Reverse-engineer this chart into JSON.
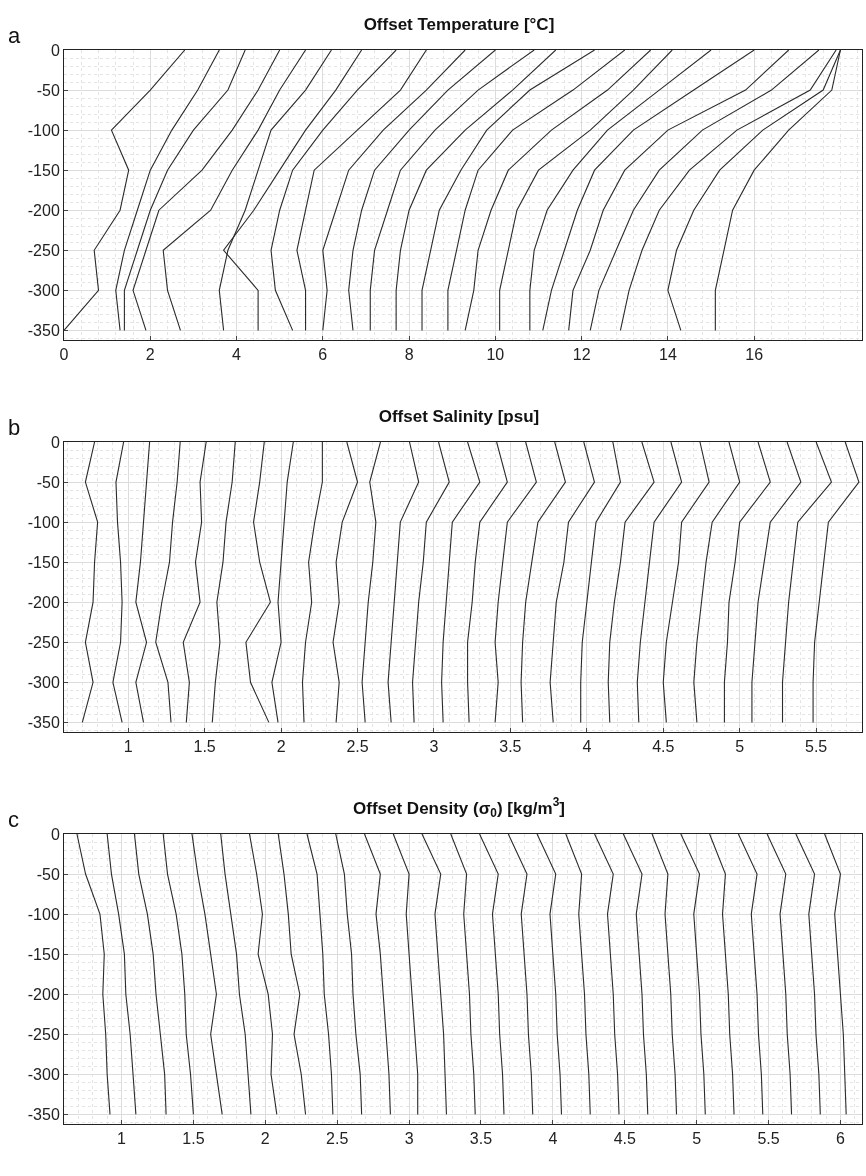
{
  "chart_data": [
    {
      "type": "line",
      "title": "Offset Temperature [°C]",
      "annotations": [
        "a"
      ],
      "xlim": [
        0,
        18.5
      ],
      "xticks": [
        0,
        2,
        4,
        6,
        8,
        10,
        12,
        14,
        16
      ],
      "ylim": [
        -362,
        0
      ],
      "yticks": [
        0,
        -50,
        -100,
        -150,
        -200,
        -250,
        -300,
        -350
      ],
      "grid": true,
      "marker": "none",
      "line_style": "solid",
      "series": [
        {
          "color": "#2b2b2b",
          "x": [
            2.8,
            2.0,
            1.1,
            1.5,
            1.3,
            0.7,
            0.8,
            0.0
          ],
          "values": [
            0,
            -50,
            -100,
            -150,
            -200,
            -250,
            -300,
            -350
          ]
        },
        {
          "color": "#2b2b2b",
          "x": [
            3.6,
            3.1,
            2.5,
            2.0,
            1.7,
            1.4,
            1.2,
            1.3
          ],
          "values": [
            0,
            -50,
            -100,
            -150,
            -200,
            -250,
            -300,
            -350
          ]
        },
        {
          "color": "#2b2b2b",
          "x": [
            4.2,
            3.8,
            3.0,
            2.4,
            2.0,
            1.7,
            1.4,
            1.4
          ],
          "values": [
            0,
            -50,
            -100,
            -150,
            -200,
            -250,
            -300,
            -350
          ]
        },
        {
          "color": "#2b2b2b",
          "x": [
            5.0,
            4.5,
            3.9,
            3.2,
            2.2,
            1.9,
            1.6,
            1.9
          ],
          "values": [
            0,
            -50,
            -100,
            -150,
            -200,
            -250,
            -300,
            -350
          ]
        },
        {
          "color": "#2b2b2b",
          "x": [
            5.6,
            5.0,
            4.5,
            3.9,
            3.4,
            2.3,
            2.4,
            2.7
          ],
          "values": [
            0,
            -50,
            -100,
            -150,
            -200,
            -250,
            -300,
            -350
          ]
        },
        {
          "color": "#2b2b2b",
          "x": [
            6.2,
            5.6,
            4.8,
            4.5,
            4.2,
            3.8,
            3.6,
            3.7
          ],
          "values": [
            0,
            -50,
            -100,
            -150,
            -200,
            -250,
            -300,
            -350
          ]
        },
        {
          "color": "#2b2b2b",
          "x": [
            6.9,
            6.3,
            5.6,
            5.0,
            4.4,
            3.7,
            4.5,
            4.5
          ],
          "values": [
            0,
            -50,
            -100,
            -150,
            -200,
            -250,
            -300,
            -350
          ]
        },
        {
          "color": "#2b2b2b",
          "x": [
            7.7,
            6.8,
            6.0,
            5.3,
            5.0,
            4.8,
            4.9,
            5.3
          ],
          "values": [
            0,
            -50,
            -100,
            -150,
            -200,
            -250,
            -300,
            -350
          ]
        },
        {
          "color": "#2b2b2b",
          "x": [
            8.4,
            7.8,
            6.8,
            5.8,
            5.6,
            5.4,
            5.6,
            5.6
          ],
          "values": [
            0,
            -50,
            -100,
            -150,
            -200,
            -250,
            -300,
            -350
          ]
        },
        {
          "color": "#2b2b2b",
          "x": [
            9.3,
            8.4,
            7.4,
            6.6,
            6.3,
            6.0,
            6.1,
            6.0
          ],
          "values": [
            0,
            -50,
            -100,
            -150,
            -200,
            -250,
            -300,
            -350
          ]
        },
        {
          "color": "#2b2b2b",
          "x": [
            10.0,
            8.9,
            8.0,
            7.2,
            6.9,
            6.7,
            6.6,
            6.7
          ],
          "values": [
            0,
            -50,
            -100,
            -150,
            -200,
            -250,
            -300,
            -350
          ]
        },
        {
          "color": "#2b2b2b",
          "x": [
            10.9,
            9.6,
            8.6,
            7.8,
            7.5,
            7.2,
            7.1,
            7.1
          ],
          "values": [
            0,
            -50,
            -100,
            -150,
            -200,
            -250,
            -300,
            -350
          ]
        },
        {
          "color": "#2b2b2b",
          "x": [
            11.4,
            10.4,
            9.3,
            8.4,
            8.0,
            7.8,
            7.7,
            7.7
          ],
          "values": [
            0,
            -50,
            -100,
            -150,
            -200,
            -250,
            -300,
            -350
          ]
        },
        {
          "color": "#2b2b2b",
          "x": [
            12.3,
            10.8,
            9.8,
            9.2,
            8.7,
            8.5,
            8.3,
            8.3
          ],
          "values": [
            0,
            -50,
            -100,
            -150,
            -200,
            -250,
            -300,
            -350
          ]
        },
        {
          "color": "#2b2b2b",
          "x": [
            13.0,
            11.8,
            10.4,
            9.6,
            9.3,
            9.1,
            8.9,
            8.9
          ],
          "values": [
            0,
            -50,
            -100,
            -150,
            -200,
            -250,
            -300,
            -350
          ]
        },
        {
          "color": "#2b2b2b",
          "x": [
            13.6,
            12.6,
            11.3,
            10.3,
            9.9,
            9.6,
            9.5,
            9.3
          ],
          "values": [
            0,
            -50,
            -100,
            -150,
            -200,
            -250,
            -300,
            -350
          ]
        },
        {
          "color": "#2b2b2b",
          "x": [
            14.1,
            13.2,
            12.2,
            11.0,
            10.5,
            10.3,
            10.1,
            10.1
          ],
          "values": [
            0,
            -50,
            -100,
            -150,
            -200,
            -250,
            -300,
            -350
          ]
        },
        {
          "color": "#2b2b2b",
          "x": [
            15.0,
            13.8,
            12.6,
            11.8,
            11.2,
            10.9,
            10.8,
            10.8
          ],
          "values": [
            0,
            -50,
            -100,
            -150,
            -200,
            -250,
            -300,
            -350
          ]
        },
        {
          "color": "#2b2b2b",
          "x": [
            16.0,
            14.6,
            13.2,
            12.3,
            11.9,
            11.6,
            11.3,
            11.1
          ],
          "values": [
            0,
            -50,
            -100,
            -150,
            -200,
            -250,
            -300,
            -350
          ]
        },
        {
          "color": "#2b2b2b",
          "x": [
            16.8,
            15.8,
            14.0,
            13.0,
            12.5,
            12.2,
            11.8,
            11.7
          ],
          "values": [
            0,
            -50,
            -100,
            -150,
            -200,
            -250,
            -300,
            -350
          ]
        },
        {
          "color": "#2b2b2b",
          "x": [
            17.5,
            16.4,
            14.8,
            13.8,
            13.2,
            12.8,
            12.4,
            12.2
          ],
          "values": [
            0,
            -50,
            -100,
            -150,
            -200,
            -250,
            -300,
            -350
          ]
        },
        {
          "color": "#2b2b2b",
          "x": [
            17.9,
            17.3,
            15.6,
            14.5,
            13.8,
            13.4,
            13.1,
            12.9
          ],
          "values": [
            0,
            -50,
            -100,
            -150,
            -200,
            -250,
            -300,
            -350
          ]
        },
        {
          "color": "#2b2b2b",
          "x": [
            18.0,
            17.6,
            16.2,
            15.2,
            14.6,
            14.2,
            14.0,
            14.3
          ],
          "values": [
            0,
            -50,
            -100,
            -150,
            -200,
            -250,
            -300,
            -350
          ]
        },
        {
          "color": "#2b2b2b",
          "x": [
            18.0,
            17.8,
            16.8,
            16.0,
            15.5,
            15.3,
            15.1,
            15.1
          ],
          "values": [
            0,
            -50,
            -100,
            -150,
            -200,
            -250,
            -300,
            -350
          ]
        }
      ]
    },
    {
      "type": "line",
      "title": "Offset Salinity [psu]",
      "annotations": [
        "b"
      ],
      "xlim": [
        0.58,
        5.8
      ],
      "xticks": [
        1,
        1.5,
        2,
        2.5,
        3,
        3.5,
        4,
        4.5,
        5,
        5.5
      ],
      "ylim": [
        -362,
        0
      ],
      "yticks": [
        0,
        -50,
        -100,
        -150,
        -200,
        -250,
        -300,
        -350
      ],
      "grid": true,
      "marker": "none",
      "line_style": "solid",
      "series": [
        {
          "color": "#2b2b2b",
          "x": [
            0.78,
            0.72,
            0.8,
            0.78,
            0.77,
            0.72,
            0.77,
            0.7
          ],
          "values": [
            0,
            -50,
            -100,
            -150,
            -200,
            -250,
            -300,
            -350
          ]
        },
        {
          "color": "#2b2b2b",
          "x": [
            0.97,
            0.92,
            0.93,
            0.95,
            0.96,
            0.95,
            0.9,
            0.96
          ],
          "values": [
            0,
            -50,
            -100,
            -150,
            -200,
            -250,
            -300,
            -350
          ]
        },
        {
          "color": "#2b2b2b",
          "x": [
            1.14,
            1.12,
            1.1,
            1.08,
            1.05,
            1.12,
            1.05,
            1.1
          ],
          "values": [
            0,
            -50,
            -100,
            -150,
            -200,
            -250,
            -300,
            -350
          ]
        },
        {
          "color": "#2b2b2b",
          "x": [
            1.34,
            1.32,
            1.29,
            1.27,
            1.22,
            1.18,
            1.26,
            1.28
          ],
          "values": [
            0,
            -50,
            -100,
            -150,
            -200,
            -250,
            -300,
            -350
          ]
        },
        {
          "color": "#2b2b2b",
          "x": [
            1.51,
            1.47,
            1.48,
            1.44,
            1.47,
            1.36,
            1.4,
            1.38
          ],
          "values": [
            0,
            -50,
            -100,
            -150,
            -200,
            -250,
            -300,
            -350
          ]
        },
        {
          "color": "#2b2b2b",
          "x": [
            1.7,
            1.68,
            1.64,
            1.62,
            1.58,
            1.6,
            1.57,
            1.55
          ],
          "values": [
            0,
            -50,
            -100,
            -150,
            -200,
            -250,
            -300,
            -350
          ]
        },
        {
          "color": "#2b2b2b",
          "x": [
            1.89,
            1.86,
            1.82,
            1.86,
            1.93,
            1.77,
            1.8,
            1.92
          ],
          "values": [
            0,
            -50,
            -100,
            -150,
            -200,
            -250,
            -300,
            -350
          ]
        },
        {
          "color": "#2b2b2b",
          "x": [
            2.08,
            2.04,
            2.02,
            2.0,
            1.98,
            2.0,
            1.94,
            1.98
          ],
          "values": [
            0,
            -50,
            -100,
            -150,
            -200,
            -250,
            -300,
            -350
          ]
        },
        {
          "color": "#2b2b2b",
          "x": [
            2.27,
            2.27,
            2.22,
            2.18,
            2.2,
            2.16,
            2.14,
            2.15
          ],
          "values": [
            0,
            -50,
            -100,
            -150,
            -200,
            -250,
            -300,
            -350
          ]
        },
        {
          "color": "#2b2b2b",
          "x": [
            2.43,
            2.5,
            2.4,
            2.36,
            2.38,
            2.34,
            2.38,
            2.36
          ],
          "values": [
            0,
            -50,
            -100,
            -150,
            -200,
            -250,
            -300,
            -350
          ]
        },
        {
          "color": "#2b2b2b",
          "x": [
            2.65,
            2.58,
            2.62,
            2.6,
            2.57,
            2.55,
            2.53,
            2.55
          ],
          "values": [
            0,
            -50,
            -100,
            -150,
            -200,
            -250,
            -300,
            -350
          ]
        },
        {
          "color": "#2b2b2b",
          "x": [
            2.84,
            2.9,
            2.78,
            2.76,
            2.74,
            2.72,
            2.7,
            2.72
          ],
          "values": [
            0,
            -50,
            -100,
            -150,
            -200,
            -250,
            -300,
            -350
          ]
        },
        {
          "color": "#2b2b2b",
          "x": [
            3.03,
            3.1,
            2.95,
            2.93,
            2.9,
            2.88,
            2.86,
            2.87
          ],
          "values": [
            0,
            -50,
            -100,
            -150,
            -200,
            -250,
            -300,
            -350
          ]
        },
        {
          "color": "#2b2b2b",
          "x": [
            3.22,
            3.3,
            3.12,
            3.1,
            3.08,
            3.06,
            3.05,
            3.06
          ],
          "values": [
            0,
            -50,
            -100,
            -150,
            -200,
            -250,
            -300,
            -350
          ]
        },
        {
          "color": "#2b2b2b",
          "x": [
            3.41,
            3.48,
            3.3,
            3.27,
            3.25,
            3.22,
            3.22,
            3.23
          ],
          "values": [
            0,
            -50,
            -100,
            -150,
            -200,
            -250,
            -300,
            -350
          ]
        },
        {
          "color": "#2b2b2b",
          "x": [
            3.6,
            3.67,
            3.48,
            3.45,
            3.42,
            3.4,
            3.42,
            3.4
          ],
          "values": [
            0,
            -50,
            -100,
            -150,
            -200,
            -250,
            -300,
            -350
          ]
        },
        {
          "color": "#2b2b2b",
          "x": [
            3.79,
            3.86,
            3.68,
            3.64,
            3.6,
            3.58,
            3.57,
            3.58
          ],
          "values": [
            0,
            -50,
            -100,
            -150,
            -200,
            -250,
            -300,
            -350
          ]
        },
        {
          "color": "#2b2b2b",
          "x": [
            3.98,
            4.05,
            3.88,
            3.85,
            3.8,
            3.78,
            3.76,
            3.78
          ],
          "values": [
            0,
            -50,
            -100,
            -150,
            -200,
            -250,
            -300,
            -350
          ]
        },
        {
          "color": "#2b2b2b",
          "x": [
            4.17,
            4.22,
            4.06,
            4.03,
            4.0,
            3.97,
            3.96,
            3.96
          ],
          "values": [
            0,
            -50,
            -100,
            -150,
            -200,
            -250,
            -300,
            -350
          ]
        },
        {
          "color": "#2b2b2b",
          "x": [
            4.36,
            4.44,
            4.25,
            4.22,
            4.18,
            4.15,
            4.14,
            4.15
          ],
          "values": [
            0,
            -50,
            -100,
            -150,
            -200,
            -250,
            -300,
            -350
          ]
        },
        {
          "color": "#2b2b2b",
          "x": [
            4.55,
            4.62,
            4.44,
            4.41,
            4.38,
            4.35,
            4.33,
            4.34
          ],
          "values": [
            0,
            -50,
            -100,
            -150,
            -200,
            -250,
            -300,
            -350
          ]
        },
        {
          "color": "#2b2b2b",
          "x": [
            4.74,
            4.8,
            4.62,
            4.6,
            4.56,
            4.52,
            4.5,
            4.52
          ],
          "values": [
            0,
            -50,
            -100,
            -150,
            -200,
            -250,
            -300,
            -350
          ]
        },
        {
          "color": "#2b2b2b",
          "x": [
            4.93,
            5.0,
            4.82,
            4.78,
            4.75,
            4.72,
            4.7,
            4.72
          ],
          "values": [
            0,
            -50,
            -100,
            -150,
            -200,
            -250,
            -300,
            -350
          ]
        },
        {
          "color": "#2b2b2b",
          "x": [
            5.12,
            5.2,
            5.0,
            4.97,
            4.93,
            4.92,
            4.9,
            4.9
          ],
          "values": [
            0,
            -50,
            -100,
            -150,
            -200,
            -250,
            -300,
            -350
          ]
        },
        {
          "color": "#2b2b2b",
          "x": [
            5.31,
            5.4,
            5.2,
            5.16,
            5.12,
            5.1,
            5.08,
            5.08
          ],
          "values": [
            0,
            -50,
            -100,
            -150,
            -200,
            -250,
            -300,
            -350
          ]
        },
        {
          "color": "#2b2b2b",
          "x": [
            5.5,
            5.6,
            5.38,
            5.35,
            5.32,
            5.3,
            5.28,
            5.28
          ],
          "values": [
            0,
            -50,
            -100,
            -150,
            -200,
            -250,
            -300,
            -350
          ]
        },
        {
          "color": "#2b2b2b",
          "x": [
            5.69,
            5.78,
            5.58,
            5.55,
            5.52,
            5.49,
            5.48,
            5.48
          ],
          "values": [
            0,
            -50,
            -100,
            -150,
            -200,
            -250,
            -300,
            -350
          ]
        }
      ]
    },
    {
      "type": "line",
      "title": "Offset Density (σ$_{0}$) [kg/m$^{3}$]",
      "annotations": [
        "c"
      ],
      "xlim": [
        0.6,
        6.15
      ],
      "xticks": [
        1,
        1.5,
        2,
        2.5,
        3,
        3.5,
        4,
        4.5,
        5,
        5.5,
        6
      ],
      "ylim": [
        -362,
        0
      ],
      "yticks": [
        0,
        -50,
        -100,
        -150,
        -200,
        -250,
        -300,
        -350
      ],
      "grid": true,
      "marker": "none",
      "line_style": "solid",
      "series": [
        {
          "color": "#2b2b2b",
          "x": [
            0.69,
            0.75,
            0.85,
            0.88,
            0.87,
            0.89,
            0.9,
            0.92
          ],
          "values": [
            0,
            -50,
            -100,
            -150,
            -200,
            -250,
            -300,
            -350
          ]
        },
        {
          "color": "#2b2b2b",
          "x": [
            0.9,
            0.93,
            0.98,
            1.02,
            1.03,
            1.06,
            1.08,
            1.1
          ],
          "values": [
            0,
            -50,
            -100,
            -150,
            -200,
            -250,
            -300,
            -350
          ]
        },
        {
          "color": "#2b2b2b",
          "x": [
            1.09,
            1.12,
            1.18,
            1.22,
            1.24,
            1.27,
            1.3,
            1.31
          ],
          "values": [
            0,
            -50,
            -100,
            -150,
            -200,
            -250,
            -300,
            -350
          ]
        },
        {
          "color": "#2b2b2b",
          "x": [
            1.29,
            1.32,
            1.38,
            1.42,
            1.44,
            1.45,
            1.48,
            1.5
          ],
          "values": [
            0,
            -50,
            -100,
            -150,
            -200,
            -250,
            -300,
            -350
          ]
        },
        {
          "color": "#2b2b2b",
          "x": [
            1.49,
            1.53,
            1.58,
            1.62,
            1.66,
            1.62,
            1.66,
            1.7
          ],
          "values": [
            0,
            -50,
            -100,
            -150,
            -200,
            -250,
            -300,
            -350
          ]
        },
        {
          "color": "#2b2b2b",
          "x": [
            1.69,
            1.72,
            1.76,
            1.8,
            1.82,
            1.86,
            1.88,
            1.9
          ],
          "values": [
            0,
            -50,
            -100,
            -150,
            -200,
            -250,
            -300,
            -350
          ]
        },
        {
          "color": "#2b2b2b",
          "x": [
            1.89,
            1.94,
            1.98,
            1.95,
            2.02,
            2.05,
            2.04,
            2.08
          ],
          "values": [
            0,
            -50,
            -100,
            -150,
            -200,
            -250,
            -300,
            -350
          ]
        },
        {
          "color": "#2b2b2b",
          "x": [
            2.09,
            2.13,
            2.16,
            2.18,
            2.24,
            2.2,
            2.25,
            2.28
          ],
          "values": [
            0,
            -50,
            -100,
            -150,
            -200,
            -250,
            -300,
            -350
          ]
        },
        {
          "color": "#2b2b2b",
          "x": [
            2.29,
            2.36,
            2.38,
            2.4,
            2.41,
            2.44,
            2.46,
            2.47
          ],
          "values": [
            0,
            -50,
            -100,
            -150,
            -200,
            -250,
            -300,
            -350
          ]
        },
        {
          "color": "#2b2b2b",
          "x": [
            2.49,
            2.55,
            2.57,
            2.6,
            2.61,
            2.63,
            2.66,
            2.67
          ],
          "values": [
            0,
            -50,
            -100,
            -150,
            -200,
            -250,
            -300,
            -350
          ]
        },
        {
          "color": "#2b2b2b",
          "x": [
            2.69,
            2.8,
            2.77,
            2.8,
            2.82,
            2.84,
            2.86,
            2.87
          ],
          "values": [
            0,
            -50,
            -100,
            -150,
            -200,
            -250,
            -300,
            -350
          ]
        },
        {
          "color": "#2b2b2b",
          "x": [
            2.89,
            3.0,
            2.98,
            3.0,
            3.02,
            3.04,
            3.06,
            3.06
          ],
          "values": [
            0,
            -50,
            -100,
            -150,
            -200,
            -250,
            -300,
            -350
          ]
        },
        {
          "color": "#2b2b2b",
          "x": [
            3.09,
            3.22,
            3.18,
            3.2,
            3.22,
            3.24,
            3.25,
            3.26
          ],
          "values": [
            0,
            -50,
            -100,
            -150,
            -200,
            -250,
            -300,
            -350
          ]
        },
        {
          "color": "#2b2b2b",
          "x": [
            3.29,
            3.4,
            3.38,
            3.4,
            3.42,
            3.43,
            3.45,
            3.46
          ],
          "values": [
            0,
            -50,
            -100,
            -150,
            -200,
            -250,
            -300,
            -350
          ]
        },
        {
          "color": "#2b2b2b",
          "x": [
            3.49,
            3.62,
            3.58,
            3.6,
            3.62,
            3.63,
            3.65,
            3.66
          ],
          "values": [
            0,
            -50,
            -100,
            -150,
            -200,
            -250,
            -300,
            -350
          ]
        },
        {
          "color": "#2b2b2b",
          "x": [
            3.69,
            3.82,
            3.78,
            3.8,
            3.82,
            3.83,
            3.85,
            3.86
          ],
          "values": [
            0,
            -50,
            -100,
            -150,
            -200,
            -250,
            -300,
            -350
          ]
        },
        {
          "color": "#2b2b2b",
          "x": [
            3.89,
            4.02,
            3.98,
            4.0,
            4.02,
            4.03,
            4.05,
            4.06
          ],
          "values": [
            0,
            -50,
            -100,
            -150,
            -200,
            -250,
            -300,
            -350
          ]
        },
        {
          "color": "#2b2b2b",
          "x": [
            4.09,
            4.2,
            4.18,
            4.2,
            4.22,
            4.23,
            4.25,
            4.26
          ],
          "values": [
            0,
            -50,
            -100,
            -150,
            -200,
            -250,
            -300,
            -350
          ]
        },
        {
          "color": "#2b2b2b",
          "x": [
            4.29,
            4.42,
            4.38,
            4.4,
            4.42,
            4.43,
            4.45,
            4.46
          ],
          "values": [
            0,
            -50,
            -100,
            -150,
            -200,
            -250,
            -300,
            -350
          ]
        },
        {
          "color": "#2b2b2b",
          "x": [
            4.49,
            4.62,
            4.58,
            4.6,
            4.62,
            4.63,
            4.65,
            4.66
          ],
          "values": [
            0,
            -50,
            -100,
            -150,
            -200,
            -250,
            -300,
            -350
          ]
        },
        {
          "color": "#2b2b2b",
          "x": [
            4.69,
            4.8,
            4.78,
            4.8,
            4.82,
            4.83,
            4.85,
            4.86
          ],
          "values": [
            0,
            -50,
            -100,
            -150,
            -200,
            -250,
            -300,
            -350
          ]
        },
        {
          "color": "#2b2b2b",
          "x": [
            4.89,
            5.02,
            4.98,
            5.0,
            5.02,
            5.03,
            5.05,
            5.06
          ],
          "values": [
            0,
            -50,
            -100,
            -150,
            -200,
            -250,
            -300,
            -350
          ]
        },
        {
          "color": "#2b2b2b",
          "x": [
            5.09,
            5.2,
            5.18,
            5.2,
            5.22,
            5.23,
            5.25,
            5.26
          ],
          "values": [
            0,
            -50,
            -100,
            -150,
            -200,
            -250,
            -300,
            -350
          ]
        },
        {
          "color": "#2b2b2b",
          "x": [
            5.29,
            5.42,
            5.38,
            5.4,
            5.42,
            5.43,
            5.45,
            5.46
          ],
          "values": [
            0,
            -50,
            -100,
            -150,
            -200,
            -250,
            -300,
            -350
          ]
        },
        {
          "color": "#2b2b2b",
          "x": [
            5.49,
            5.62,
            5.58,
            5.6,
            5.62,
            5.63,
            5.65,
            5.66
          ],
          "values": [
            0,
            -50,
            -100,
            -150,
            -200,
            -250,
            -300,
            -350
          ]
        },
        {
          "color": "#2b2b2b",
          "x": [
            5.69,
            5.82,
            5.78,
            5.8,
            5.82,
            5.83,
            5.85,
            5.86
          ],
          "values": [
            0,
            -50,
            -100,
            -150,
            -200,
            -250,
            -300,
            -350
          ]
        },
        {
          "color": "#2b2b2b",
          "x": [
            5.89,
            6.0,
            5.96,
            5.98,
            6.0,
            6.02,
            6.03,
            6.04
          ],
          "values": [
            0,
            -50,
            -100,
            -150,
            -200,
            -250,
            -300,
            -350
          ]
        }
      ]
    }
  ]
}
